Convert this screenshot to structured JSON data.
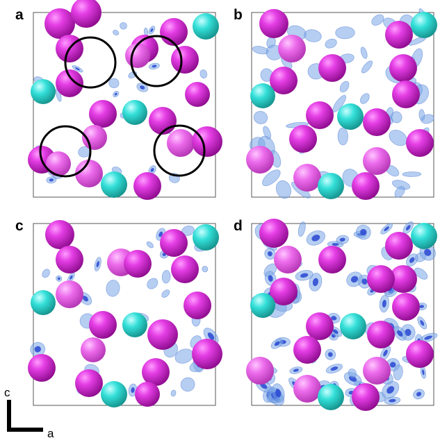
{
  "panels": [
    {
      "label": "a"
    },
    {
      "label": "b"
    },
    {
      "label": "c"
    },
    {
      "label": "d"
    }
  ],
  "axes": {
    "vertical": "c",
    "horizontal": "a"
  },
  "colors": {
    "magenta_atom": "#d61cd6",
    "cyan_atom": "#22d6cf",
    "density_light": "#7aa6e6",
    "density_dark": "#1f3fd0",
    "circle": "#000000",
    "frame": "#555555"
  }
}
